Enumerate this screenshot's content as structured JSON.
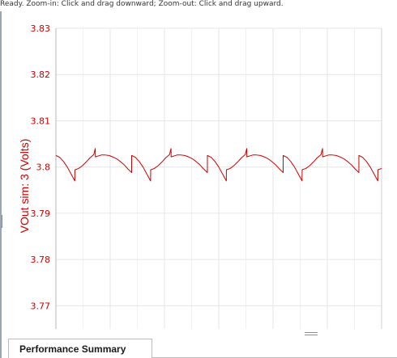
{
  "status": {
    "text": "Ready.  Zoom-in: Click and drag downward; Zoom-out: Click and drag upward."
  },
  "tabs": [
    {
      "label": "Performance Summary"
    }
  ],
  "colors": {
    "series": "#cc0000",
    "axis_text": "#cc0000",
    "grid_major": "#e6e6e6",
    "grid_minor": "#f1f1f1"
  },
  "chart_data": {
    "type": "line",
    "title": "",
    "xlabel": "",
    "ylabel": "VOut sim: 3 (Volts)",
    "ylim": [
      3.765,
      3.83
    ],
    "grid": true,
    "yticks": [
      {
        "value": 3.83,
        "label": "3.83"
      },
      {
        "value": 3.82,
        "label": "3.82"
      },
      {
        "value": 3.81,
        "label": "3.81"
      },
      {
        "value": 3.8,
        "label": "3.8"
      },
      {
        "value": 3.79,
        "label": "3.79"
      },
      {
        "value": 3.78,
        "label": "3.78"
      },
      {
        "value": 3.77,
        "label": "3.77"
      }
    ],
    "series": [
      {
        "periods": 4.3,
        "points": [
          [
            0.0,
            3.8025
          ],
          [
            0.05,
            3.8021
          ],
          [
            0.1,
            3.8012
          ],
          [
            0.15,
            3.8
          ],
          [
            0.2,
            3.7985
          ],
          [
            0.25,
            3.797
          ],
          [
            0.251,
            3.7994
          ],
          [
            0.3,
            3.7997
          ],
          [
            0.35,
            3.8003
          ],
          [
            0.4,
            3.8011
          ],
          [
            0.45,
            3.802
          ],
          [
            0.5,
            3.8027
          ],
          [
            0.52,
            3.804
          ],
          [
            0.521,
            3.8022
          ],
          [
            0.56,
            3.8024
          ],
          [
            0.6,
            3.8026
          ],
          [
            0.65,
            3.8026
          ],
          [
            0.7,
            3.8025
          ],
          [
            0.75,
            3.8022
          ],
          [
            0.8,
            3.8018
          ],
          [
            0.85,
            3.8012
          ],
          [
            0.9,
            3.8005
          ],
          [
            0.95,
            3.7996
          ],
          [
            1.0,
            3.7988
          ]
        ]
      }
    ]
  }
}
